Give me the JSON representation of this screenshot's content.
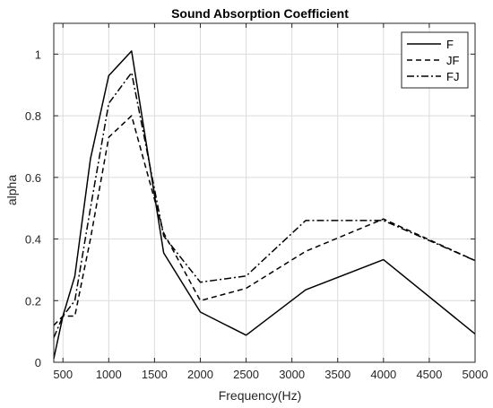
{
  "chart_data": {
    "type": "line",
    "title": "Sound Absorption Coefficient",
    "xlabel": "Frequency(Hz)",
    "ylabel": "alpha",
    "xlim": [
      400,
      5000
    ],
    "ylim": [
      0,
      1.1
    ],
    "xticks": [
      500,
      1000,
      1500,
      2000,
      2500,
      3000,
      3500,
      4000,
      4500,
      5000
    ],
    "yticks": [
      0,
      0.2,
      0.4,
      0.6,
      0.8,
      1
    ],
    "ytick_labels": [
      "0",
      "0.2",
      "0.4",
      "0.6",
      "0.8",
      "1"
    ],
    "grid": true,
    "legend_position": "top-right",
    "series": [
      {
        "name": "F",
        "style": "solid",
        "color": "#000000",
        "x": [
          400,
          500,
          630,
          800,
          1000,
          1250,
          1600,
          2000,
          2500,
          3150,
          4000,
          5000
        ],
        "y": [
          0.012,
          0.15,
          0.28,
          0.66,
          0.93,
          1.01,
          0.355,
          0.163,
          0.088,
          0.235,
          0.333,
          0.092
        ]
      },
      {
        "name": "JF",
        "style": "dashed",
        "color": "#000000",
        "x": [
          400,
          500,
          630,
          800,
          1000,
          1250,
          1600,
          2000,
          2500,
          3150,
          4000,
          5000
        ],
        "y": [
          0.12,
          0.15,
          0.15,
          0.4,
          0.73,
          0.8,
          0.42,
          0.2,
          0.24,
          0.36,
          0.465,
          0.33
        ]
      },
      {
        "name": "FJ",
        "style": "dashdot",
        "color": "#000000",
        "x": [
          400,
          500,
          630,
          800,
          1000,
          1250,
          1600,
          2000,
          2500,
          3150,
          4000,
          5000
        ],
        "y": [
          0.08,
          0.15,
          0.2,
          0.5,
          0.84,
          0.94,
          0.41,
          0.26,
          0.28,
          0.46,
          0.46,
          0.33
        ]
      }
    ]
  }
}
